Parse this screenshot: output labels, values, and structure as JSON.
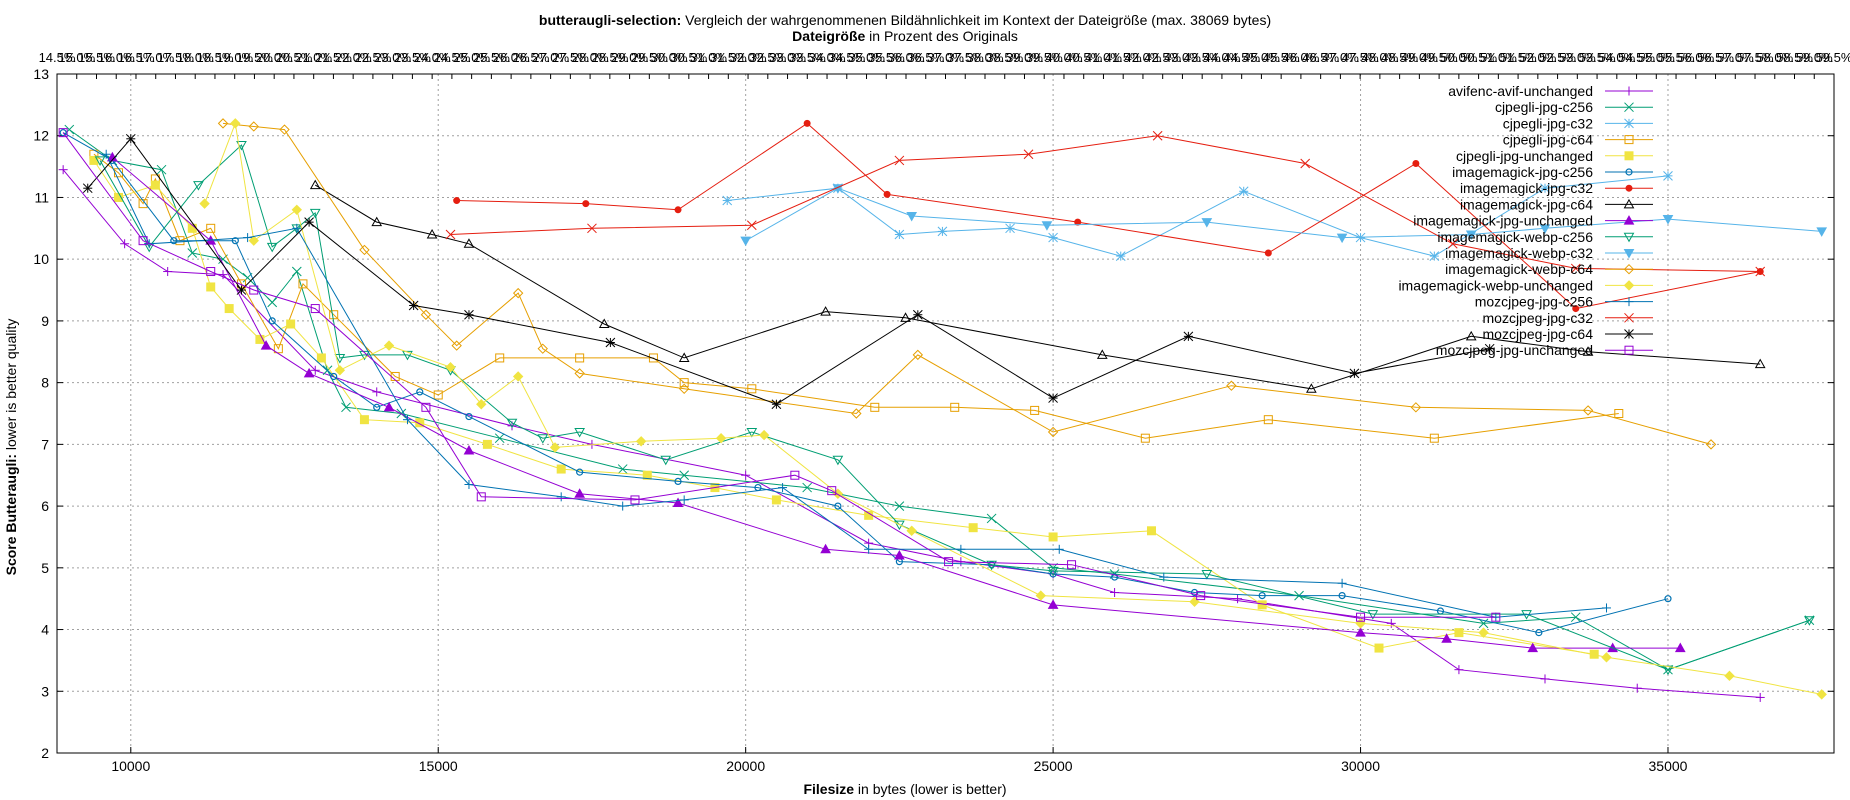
{
  "chart_data": {
    "type": "line",
    "title_bold": "butteraugli-selection:",
    "title_rest": " Vergleich der wahrgenommenen Bildähnlichkeit im Kontext der Dateigröße (max. 38069 bytes)",
    "x2label_bold": "Dateigröße",
    "x2label_rest": " in Prozent des Originals",
    "xlabel_bold": "Filesize",
    "xlabel_rest": " in bytes (lower is better)",
    "ylabel_bold": "Score Butteraugli:",
    "ylabel_rest": " lower is better quality",
    "xlim": [
      8800,
      37700
    ],
    "ylim": [
      2,
      13
    ],
    "xticks": [
      10000,
      15000,
      20000,
      25000,
      30000,
      35000
    ],
    "yticks": [
      2,
      3,
      4,
      5,
      6,
      7,
      8,
      9,
      10,
      11,
      12,
      13
    ],
    "x2ticks": [
      "14.5%",
      "15.0%",
      "15.5%",
      "16.0%",
      "16.5%",
      "17.0%",
      "17.5%",
      "18.0%",
      "18.5%",
      "19.0%",
      "19.5%",
      "20.0%",
      "20.5%",
      "21.0%",
      "21.5%",
      "22.0%",
      "22.5%",
      "23.0%",
      "23.5%",
      "24.0%",
      "24.5%",
      "25.0%",
      "25.5%",
      "26.0%",
      "26.5%",
      "27.0%",
      "27.5%",
      "28.0%",
      "28.5%",
      "29.0%",
      "29.5%",
      "30.0%",
      "30.5%",
      "31.0%",
      "31.5%",
      "32.0%",
      "32.5%",
      "33.0%",
      "33.5%",
      "34.0%",
      "34.5%",
      "35.0%",
      "35.5%",
      "36.0%",
      "36.5%",
      "37.0%",
      "37.5%",
      "38.0%",
      "38.5%",
      "39.0%",
      "39.5%",
      "40.0%",
      "40.5%",
      "41.0%",
      "41.5%",
      "42.0%",
      "42.5%",
      "43.0%",
      "43.5%",
      "44.0%",
      "44.5%",
      "45.0%",
      "45.5%",
      "46.0%",
      "46.5%",
      "47.0%",
      "47.5%",
      "48.0%",
      "48.5%",
      "49.0%",
      "49.5%",
      "50.0%",
      "50.5%",
      "51.0%",
      "51.5%",
      "52.0%",
      "52.5%",
      "53.0%",
      "53.5%",
      "54.0%",
      "54.5%",
      "55.0%",
      "55.5%",
      "56.0%",
      "56.5%",
      "57.0%",
      "57.5%",
      "58.0%",
      "58.5%",
      "59.0%",
      "59.5%"
    ],
    "grid": true,
    "legend_position": "top-right",
    "series": [
      {
        "name": "avifenc-avif-unchanged",
        "color": "#9400d3",
        "marker": "plus",
        "x": [
          8900,
          9900,
          10600,
          11500,
          13000,
          14000,
          16200,
          17500,
          20000,
          22000,
          23500,
          25000,
          26000,
          28000,
          30500,
          31600,
          33000,
          34500,
          36500
        ],
        "y": [
          11.45,
          10.25,
          9.8,
          9.75,
          8.2,
          7.85,
          7.3,
          7.0,
          6.5,
          5.4,
          5.1,
          4.9,
          4.6,
          4.5,
          4.1,
          3.35,
          3.2,
          3.05,
          2.9
        ]
      },
      {
        "name": "cjpegli-jpg-c256",
        "color": "#009e73",
        "marker": "x",
        "x": [
          9000,
          9700,
          10500,
          11000,
          11500,
          11900,
          12300,
          12700,
          13200,
          13500,
          14400,
          16000,
          18000,
          19000,
          21000,
          22500,
          24000,
          25000,
          26000,
          29000,
          32000,
          33500,
          35000,
          37300
        ],
        "y": [
          12.1,
          11.6,
          11.45,
          10.1,
          10.0,
          9.7,
          9.3,
          9.8,
          8.2,
          7.6,
          7.5,
          7.1,
          6.6,
          6.5,
          6.3,
          6.0,
          5.8,
          5.0,
          4.9,
          4.55,
          4.1,
          4.2,
          3.35,
          4.15
        ]
      },
      {
        "name": "cjpegli-jpg-c32",
        "color": "#56b4e9",
        "marker": "star",
        "x": [
          19700,
          21500,
          22500,
          23200,
          24300,
          25000,
          26100,
          28100,
          30000,
          31200,
          33000,
          35000
        ],
        "y": [
          10.95,
          11.15,
          10.4,
          10.45,
          10.5,
          10.35,
          10.05,
          11.1,
          10.35,
          10.05,
          11.15,
          11.35
        ]
      },
      {
        "name": "cjpegli-jpg-c64",
        "color": "#e69f00",
        "marker": "box",
        "x": [
          9400,
          9800,
          10200,
          10400,
          10800,
          11300,
          11800,
          12400,
          12800,
          13300,
          14300,
          15000,
          16000,
          17300,
          18500,
          19000,
          20100,
          22100,
          23400,
          24700,
          26500,
          28500,
          31200,
          34200
        ],
        "y": [
          11.7,
          11.4,
          10.9,
          11.3,
          10.3,
          10.5,
          9.6,
          8.55,
          9.6,
          9.1,
          8.1,
          7.8,
          8.4,
          8.4,
          8.4,
          8.0,
          7.9,
          7.6,
          7.6,
          7.55,
          7.1,
          7.4,
          7.1,
          7.5
        ]
      },
      {
        "name": "cjpegli-jpg-unchanged",
        "color": "#f0e442",
        "marker": "fillbox",
        "x": [
          9400,
          9800,
          10400,
          11000,
          11300,
          11600,
          12100,
          12600,
          13100,
          13800,
          14700,
          15800,
          17000,
          18400,
          19500,
          20500,
          22000,
          23700,
          25000,
          26600,
          28400,
          30300,
          31600,
          33800
        ],
        "y": [
          11.6,
          11.0,
          11.2,
          10.5,
          9.55,
          9.2,
          8.7,
          8.95,
          8.4,
          7.4,
          7.35,
          7.0,
          6.6,
          6.5,
          6.3,
          6.1,
          5.85,
          5.65,
          5.5,
          5.6,
          4.4,
          3.7,
          3.95,
          3.6
        ]
      },
      {
        "name": "imagemagick-jpg-c256",
        "color": "#0072b2",
        "marker": "circle",
        "x": [
          8900,
          9700,
          10700,
          11700,
          12300,
          13300,
          14000,
          14700,
          15500,
          17300,
          18900,
          20200,
          21500,
          22500,
          24000,
          25000,
          26000,
          27300,
          28400,
          29700,
          31300,
          32900,
          35000
        ],
        "y": [
          12.05,
          11.6,
          10.3,
          10.3,
          9.0,
          8.1,
          7.6,
          7.85,
          7.45,
          6.55,
          6.4,
          6.3,
          6.0,
          5.1,
          5.05,
          4.9,
          4.85,
          4.6,
          4.55,
          4.55,
          4.3,
          3.95,
          4.5
        ]
      },
      {
        "name": "imagemagick-jpg-c32",
        "color": "#e51e10",
        "marker": "fillcircle",
        "x": [
          15300,
          17400,
          18900,
          21000,
          22300,
          25400,
          28500,
          30900,
          33500,
          36500
        ],
        "y": [
          10.95,
          10.9,
          10.8,
          12.2,
          11.05,
          10.6,
          10.1,
          11.55,
          9.2,
          9.8
        ]
      },
      {
        "name": "imagemagick-jpg-c64",
        "color": "#000000",
        "marker": "triangle",
        "x": [
          13000,
          14000,
          14900,
          15500,
          17700,
          19000,
          21300,
          22600,
          25800,
          29200,
          31800,
          33700,
          36500
        ],
        "y": [
          11.2,
          10.6,
          10.4,
          10.25,
          8.95,
          8.4,
          9.15,
          9.05,
          8.45,
          7.9,
          8.75,
          8.5,
          8.3
        ]
      },
      {
        "name": "imagemagick-jpg-unchanged",
        "color": "#9400d3",
        "marker": "filltriangle",
        "x": [
          9700,
          11300,
          12200,
          12900,
          14200,
          15500,
          17300,
          18900,
          21300,
          22500,
          25000,
          30000,
          31400,
          32800,
          34100,
          35200
        ],
        "y": [
          11.65,
          10.3,
          8.6,
          8.15,
          7.6,
          6.9,
          6.2,
          6.05,
          5.3,
          5.2,
          4.4,
          3.95,
          3.85,
          3.7,
          3.7,
          3.7
        ]
      },
      {
        "name": "imagemagick-webp-c256",
        "color": "#009e73",
        "marker": "triangledown",
        "x": [
          9500,
          10300,
          11100,
          11800,
          12300,
          12700,
          13000,
          13400,
          13800,
          14500,
          15200,
          16200,
          16700,
          17300,
          18700,
          20100,
          21500,
          22500,
          24000,
          25000,
          27500,
          30200,
          32700,
          35000,
          37300
        ],
        "y": [
          11.6,
          10.2,
          11.2,
          11.85,
          10.2,
          10.5,
          10.75,
          8.4,
          8.45,
          8.45,
          8.2,
          7.35,
          7.1,
          7.2,
          6.75,
          7.2,
          6.75,
          5.7,
          5.05,
          4.95,
          4.9,
          4.25,
          4.25,
          3.35,
          4.15
        ]
      },
      {
        "name": "imagemagick-webp-c32",
        "color": "#56b4e9",
        "marker": "filltriangledown",
        "x": [
          20000,
          21500,
          22700,
          24900,
          27500,
          29700,
          31800,
          33000,
          35000,
          37500
        ],
        "y": [
          10.3,
          11.15,
          10.7,
          10.55,
          10.6,
          10.35,
          10.4,
          10.5,
          10.65,
          10.45
        ]
      },
      {
        "name": "imagemagick-webp-c64",
        "color": "#e69f00",
        "marker": "diamond",
        "x": [
          11500,
          12000,
          12500,
          13800,
          14800,
          15300,
          16300,
          16700,
          17300,
          19000,
          21800,
          22800,
          25000,
          27900,
          30900,
          33700,
          35700
        ],
        "y": [
          12.2,
          12.15,
          12.1,
          10.15,
          9.1,
          8.6,
          9.45,
          8.55,
          8.15,
          7.9,
          7.5,
          8.45,
          7.2,
          7.95,
          7.6,
          7.55,
          7.0
        ]
      },
      {
        "name": "imagemagick-webp-unchanged",
        "color": "#f0e442",
        "marker": "filldiamond",
        "x": [
          11200,
          11700,
          12000,
          12700,
          13400,
          14200,
          15200,
          15700,
          16300,
          16900,
          18300,
          19600,
          20300,
          21500,
          22700,
          24800,
          27300,
          30000,
          32000,
          34000,
          36000,
          37500
        ],
        "y": [
          10.9,
          12.2,
          10.3,
          10.8,
          8.2,
          8.6,
          8.25,
          7.65,
          8.1,
          6.95,
          7.05,
          7.1,
          7.15,
          6.2,
          5.6,
          4.55,
          4.45,
          4.1,
          3.95,
          3.55,
          3.25,
          2.95
        ]
      },
      {
        "name": "mozcjpeg-jpg-c256",
        "color": "#0072b2",
        "marker": "plus",
        "x": [
          9600,
          10300,
          11900,
          12700,
          14500,
          15500,
          17000,
          18000,
          19000,
          20600,
          22000,
          23500,
          25100,
          26800,
          29700,
          32200,
          34000
        ],
        "y": [
          11.7,
          10.25,
          10.35,
          10.5,
          7.4,
          6.35,
          6.15,
          6.0,
          6.1,
          6.3,
          5.3,
          5.3,
          5.3,
          4.85,
          4.75,
          4.2,
          4.35
        ]
      },
      {
        "name": "mozcjpeg-jpg-c32",
        "color": "#e51e10",
        "marker": "x",
        "x": [
          15200,
          17500,
          20100,
          22500,
          24600,
          26700,
          29100,
          31500,
          33500,
          36500
        ],
        "y": [
          10.4,
          10.5,
          10.55,
          11.6,
          11.7,
          12.0,
          11.55,
          10.25,
          9.85,
          9.8
        ]
      },
      {
        "name": "mozcjpeg-jpg-c64",
        "color": "#000000",
        "marker": "star",
        "x": [
          9300,
          10000,
          11800,
          12900,
          14600,
          15500,
          17800,
          20500,
          22800,
          25000,
          27200,
          29900,
          32100
        ],
        "y": [
          11.15,
          11.95,
          9.5,
          10.6,
          9.25,
          9.1,
          8.65,
          7.65,
          9.1,
          7.75,
          8.75,
          8.15,
          8.55
        ]
      },
      {
        "name": "mozcjpeg-jpg-unchanged",
        "color": "#9400d3",
        "marker": "box",
        "x": [
          8900,
          10200,
          11300,
          12000,
          13000,
          14800,
          15700,
          18200,
          20800,
          21400,
          23300,
          25300,
          27400,
          30000,
          32200
        ],
        "y": [
          12.05,
          10.3,
          9.8,
          9.5,
          9.2,
          7.6,
          6.15,
          6.1,
          6.5,
          6.25,
          5.1,
          5.05,
          4.55,
          4.2,
          4.2
        ]
      }
    ]
  }
}
